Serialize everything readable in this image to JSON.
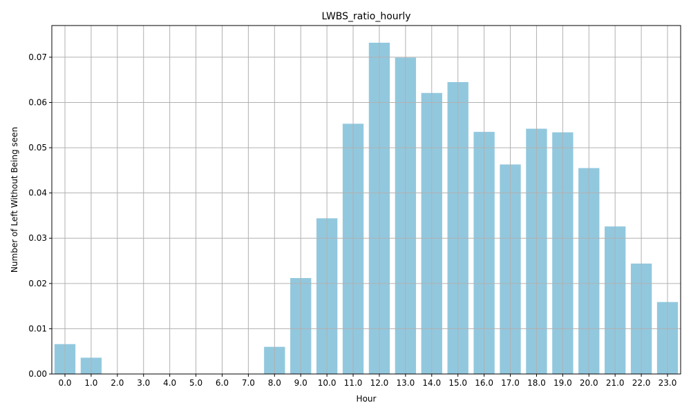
{
  "chart_data": {
    "type": "bar",
    "title": "LWBS_ratio_hourly",
    "xlabel": "Hour",
    "ylabel": "Number of Left Without Being seen",
    "categories": [
      "0.0",
      "1.0",
      "2.0",
      "3.0",
      "4.0",
      "5.0",
      "6.0",
      "7.0",
      "8.0",
      "9.0",
      "10.0",
      "11.0",
      "12.0",
      "13.0",
      "14.0",
      "15.0",
      "16.0",
      "17.0",
      "18.0",
      "19.0",
      "20.0",
      "21.0",
      "22.0",
      "23.0"
    ],
    "values": [
      0.0066,
      0.0036,
      0,
      0,
      0,
      0,
      0,
      0,
      0.006,
      0.0212,
      0.0344,
      0.0553,
      0.0732,
      0.0699,
      0.0621,
      0.0645,
      0.0535,
      0.0463,
      0.0542,
      0.0534,
      0.0455,
      0.0326,
      0.0244,
      0.0159
    ],
    "ylim": [
      0,
      0.077
    ],
    "yticks": [
      "0.00",
      "0.01",
      "0.02",
      "0.03",
      "0.04",
      "0.05",
      "0.06",
      "0.07"
    ],
    "grid": true,
    "colors": {
      "bar": "#92c8de",
      "grid": "#b0b0b0",
      "axis": "#000000"
    }
  }
}
